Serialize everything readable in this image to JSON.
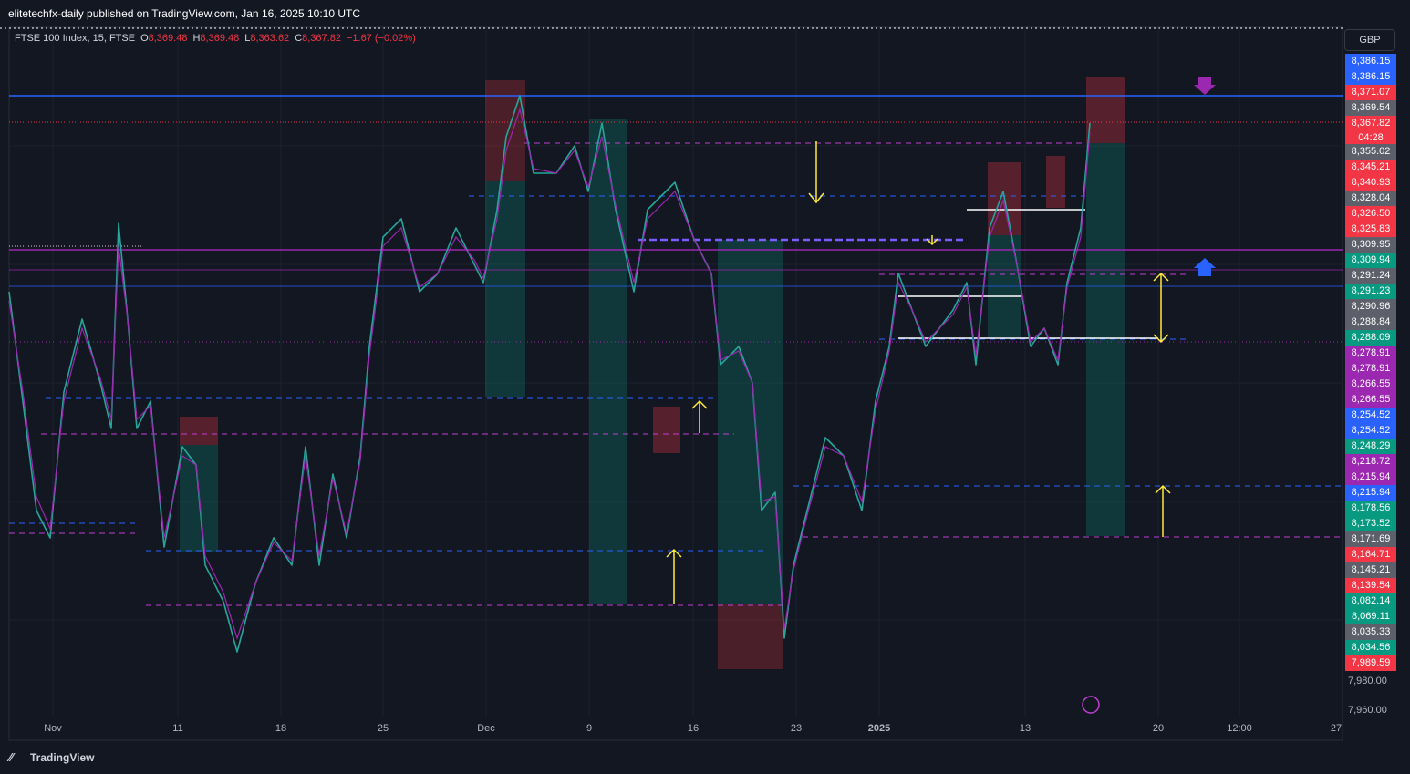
{
  "header": {
    "title": "elitetechfx-daily published on TradingView.com, Jan 16, 2025 10:10 UTC"
  },
  "legend": {
    "symbol": "FTSE 100 Index, 15, FTSE",
    "ohlc": [
      {
        "key": "O",
        "value": "8,369.48"
      },
      {
        "key": "H",
        "value": "8,369.48"
      },
      {
        "key": "L",
        "value": "8,363.62"
      },
      {
        "key": "C",
        "value": "8,367.82"
      }
    ],
    "change": "−1.67 (−0.02%)"
  },
  "currency": "GBP",
  "price_tags": [
    {
      "text": "8,386.15",
      "color": "#2962ff"
    },
    {
      "text": "8,386.15",
      "color": "#2962ff"
    },
    {
      "text": "8,371.07",
      "color": "#f23645"
    },
    {
      "text": "8,369.54",
      "color": "#5d606b"
    },
    {
      "text": "8,367.82",
      "sub": "04:28",
      "color": "#f23645"
    },
    {
      "text": "8,355.02",
      "color": "#5d606b"
    },
    {
      "text": "8,345.21",
      "color": "#f23645"
    },
    {
      "text": "8,340.93",
      "color": "#f23645"
    },
    {
      "text": "8,328.04",
      "color": "#5d606b"
    },
    {
      "text": "8,326.50",
      "color": "#f23645"
    },
    {
      "text": "8,325.83",
      "color": "#f23645"
    },
    {
      "text": "8,309.95",
      "color": "#5d606b"
    },
    {
      "text": "8,309.94",
      "color": "#089981"
    },
    {
      "text": "8,291.24",
      "color": "#5d606b"
    },
    {
      "text": "8,291.23",
      "color": "#089981"
    },
    {
      "text": "8,290.96",
      "color": "#5d606b"
    },
    {
      "text": "8,288.84",
      "color": "#5d606b"
    },
    {
      "text": "8,288.09",
      "color": "#089981"
    },
    {
      "text": "8,278.91",
      "color": "#9c27b0"
    },
    {
      "text": "8,278.91",
      "color": "#9c27b0"
    },
    {
      "text": "8,266.55",
      "color": "#9c27b0"
    },
    {
      "text": "8,266.55",
      "color": "#9c27b0"
    },
    {
      "text": "8,254.52",
      "color": "#2962ff"
    },
    {
      "text": "8,254.52",
      "color": "#2962ff"
    },
    {
      "text": "8,248.29",
      "color": "#089981"
    },
    {
      "text": "8,218.72",
      "color": "#9c27b0"
    },
    {
      "text": "8,215.94",
      "color": "#9c27b0"
    },
    {
      "text": "8,215.94",
      "color": "#2962ff"
    },
    {
      "text": "8,178.56",
      "color": "#089981"
    },
    {
      "text": "8,173.52",
      "color": "#089981"
    },
    {
      "text": "8,171.69",
      "color": "#5d606b"
    },
    {
      "text": "8,164.71",
      "color": "#f23645"
    },
    {
      "text": "8,145.21",
      "color": "#5d606b"
    },
    {
      "text": "8,139.54",
      "color": "#f23645"
    },
    {
      "text": "8,082.14",
      "color": "#089981"
    },
    {
      "text": "8,069.11",
      "color": "#089981"
    },
    {
      "text": "8,035.33",
      "color": "#5d606b"
    },
    {
      "text": "8,034.56",
      "color": "#089981"
    },
    {
      "text": "7,989.59",
      "color": "#f23645"
    }
  ],
  "axis_labels": [
    "7,980.00",
    "7,960.00"
  ],
  "x_labels": [
    "Nov",
    "11",
    "18",
    "25",
    "Dec",
    "9",
    "16",
    "23",
    "2025",
    "13",
    "20",
    "12:00",
    "27"
  ],
  "footer": {
    "brand": "TradingView"
  }
}
